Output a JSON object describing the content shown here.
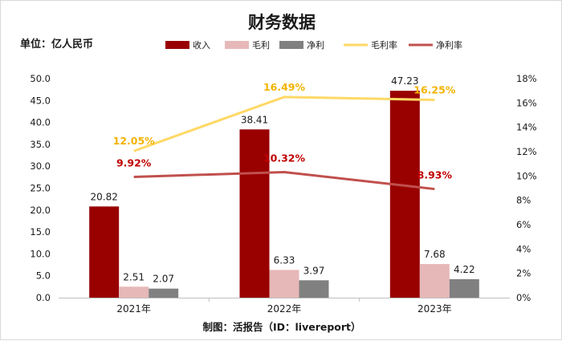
{
  "chart_data": {
    "type": "bar",
    "title": "财务数据",
    "unit_label": "单位：亿人民币",
    "source": "制图：活报告（ID：livereport）",
    "categories": [
      "2021年",
      "2022年",
      "2023年"
    ],
    "series": [
      {
        "name": "收入",
        "kind": "bar",
        "axis": "left",
        "color": "#990000",
        "values": [
          20.82,
          38.41,
          47.23
        ],
        "labels": [
          "20.82",
          "38.41",
          "47.23"
        ]
      },
      {
        "name": "毛利",
        "kind": "bar",
        "axis": "left",
        "color": "#e6b8b7",
        "values": [
          2.51,
          6.33,
          7.68
        ],
        "labels": [
          "2.51",
          "6.33",
          "7.68"
        ]
      },
      {
        "name": "净利",
        "kind": "bar",
        "axis": "left",
        "color": "#808080",
        "values": [
          2.07,
          3.97,
          4.22
        ],
        "labels": [
          "2.07",
          "3.97",
          "4.22"
        ]
      },
      {
        "name": "毛利率",
        "kind": "line",
        "axis": "right",
        "color": "#ffd966",
        "label_color": "#f2b300",
        "values": [
          12.05,
          16.49,
          16.25
        ],
        "labels": [
          "12.05%",
          "16.49%",
          "16.25%"
        ]
      },
      {
        "name": "净利率",
        "kind": "line",
        "axis": "right",
        "color": "#c0504d",
        "label_color": "#c00000",
        "values": [
          9.92,
          10.32,
          8.93
        ],
        "labels": [
          "9.92%",
          "10.32%",
          "8.93%"
        ]
      }
    ],
    "y_left": {
      "lim": [
        0,
        50
      ],
      "ticks": [
        "0.0",
        "5.0",
        "10.0",
        "15.0",
        "20.0",
        "25.0",
        "30.0",
        "35.0",
        "40.0",
        "45.0",
        "50.0"
      ]
    },
    "y_right": {
      "lim": [
        0,
        18
      ],
      "ticks": [
        "0%",
        "2%",
        "4%",
        "6%",
        "8%",
        "10%",
        "12%",
        "14%",
        "16%",
        "18%"
      ]
    },
    "legend_position": "top",
    "grid": false
  }
}
